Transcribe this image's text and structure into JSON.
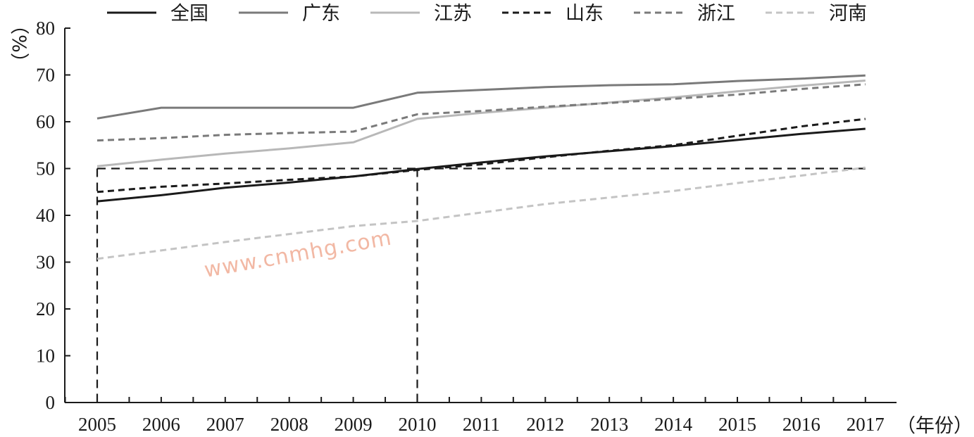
{
  "chart_data": {
    "type": "line",
    "x": [
      "2005",
      "2006",
      "2007",
      "2008",
      "2009",
      "2010",
      "2011",
      "2012",
      "2013",
      "2014",
      "2015",
      "2016",
      "2017"
    ],
    "ylim": [
      0,
      80
    ],
    "yticks": [
      "0",
      "10",
      "20",
      "30",
      "40",
      "50",
      "60",
      "70",
      "80"
    ],
    "ylabel": "（%）",
    "xlabel": "（年份）",
    "legend_position": "top",
    "grid": false,
    "reference_lines": {
      "horizontal_y": 50,
      "vertical_x": [
        "2005",
        "2010"
      ]
    },
    "series": [
      {
        "name": "全国",
        "color": "#1a1a1a",
        "dash": "solid",
        "values": [
          43.0,
          44.3,
          45.9,
          47.0,
          48.3,
          49.9,
          51.3,
          52.6,
          53.7,
          54.8,
          56.1,
          57.4,
          58.5
        ]
      },
      {
        "name": "广东",
        "color": "#7a7a7a",
        "dash": "solid",
        "values": [
          60.7,
          63.0,
          63.0,
          63.0,
          63.0,
          66.2,
          66.8,
          67.4,
          67.8,
          68.0,
          68.7,
          69.2,
          69.9
        ]
      },
      {
        "name": "江苏",
        "color": "#b8b8b8",
        "dash": "solid",
        "values": [
          50.5,
          51.9,
          53.2,
          54.3,
          55.6,
          60.6,
          61.9,
          63.0,
          64.1,
          65.2,
          66.5,
          67.7,
          68.8
        ]
      },
      {
        "name": "山东",
        "color": "#1a1a1a",
        "dash": "dashed",
        "values": [
          45.0,
          46.1,
          46.8,
          47.6,
          48.3,
          49.7,
          50.9,
          52.4,
          53.8,
          55.0,
          57.0,
          59.0,
          60.6
        ]
      },
      {
        "name": "浙江",
        "color": "#7a7a7a",
        "dash": "dashed",
        "values": [
          56.0,
          56.5,
          57.2,
          57.6,
          57.9,
          61.6,
          62.3,
          63.2,
          64.0,
          64.9,
          65.8,
          67.0,
          68.0
        ]
      },
      {
        "name": "河南",
        "color": "#c4c4c4",
        "dash": "dashed",
        "values": [
          30.7,
          32.5,
          34.3,
          36.0,
          37.7,
          38.8,
          40.6,
          42.4,
          43.8,
          45.2,
          46.9,
          48.5,
          50.2
        ]
      }
    ],
    "watermark": "www.cnmhg.com"
  }
}
